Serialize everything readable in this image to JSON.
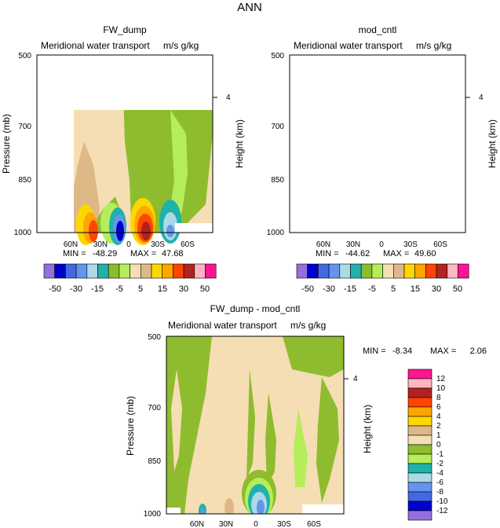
{
  "title": "ANN",
  "chart_data": [
    {
      "type": "heatmap",
      "title": "FW_dump",
      "subtitle": "Meridional water transport",
      "units": "m/s g/kg",
      "ylabel": "Pressure (mb)",
      "ylabel_right": "Height (km)",
      "yticks": [
        "500",
        "700",
        "850",
        "1000"
      ],
      "yticks_right": [
        "4"
      ],
      "xticks": [
        "60N",
        "30N",
        "0",
        "30S",
        "60S"
      ],
      "ylim": [
        1000,
        500
      ],
      "stats": {
        "min_label": "MIN =",
        "min": "-48.29",
        "max_label": "MAX =",
        "max": "47.68"
      }
    },
    {
      "type": "heatmap",
      "title": "mod_cntl",
      "subtitle": "Meridional water transport",
      "units": "m/s g/kg",
      "ylabel": "Pressure (mb)",
      "ylabel_right": "Height (km)",
      "yticks": [
        "500",
        "700",
        "850",
        "1000"
      ],
      "yticks_right": [
        "4"
      ],
      "xticks": [
        "60N",
        "30N",
        "0",
        "30S",
        "60S"
      ],
      "ylim": [
        1000,
        500
      ],
      "stats": {
        "min_label": "MIN =",
        "min": "-44.62",
        "max_label": "MAX =",
        "max": "49.60"
      }
    },
    {
      "type": "heatmap",
      "title": "FW_dump - mod_cntl",
      "subtitle": "Meridional water transport",
      "units": "m/s g/kg",
      "ylabel": "Pressure (mb)",
      "ylabel_right": "Height (km)",
      "yticks": [
        "500",
        "700",
        "850",
        "1000"
      ],
      "yticks_right": [
        "4"
      ],
      "xticks": [
        "60N",
        "30N",
        "0",
        "30S",
        "60S"
      ],
      "ylim": [
        1000,
        500
      ],
      "stats": {
        "min_label": "MIN =",
        "min": "-8.34",
        "max_label": "MAX =",
        "max": "2.06"
      }
    }
  ],
  "colorbar_top": {
    "labels": [
      "-50",
      "-30",
      "-15",
      "-5",
      "5",
      "15",
      "30",
      "50"
    ],
    "colors": [
      "#9370db",
      "#0000cd",
      "#4169e1",
      "#6495ed",
      "#add8e6",
      "#20b2aa",
      "#8fbc2f",
      "#b4ee5a",
      "#f5deb3",
      "#deb887",
      "#ffd700",
      "#ffa500",
      "#ff4500",
      "#b22222",
      "#ffb6c1",
      "#ff1493"
    ]
  },
  "colorbar_diff": {
    "labels": [
      "12",
      "10",
      "8",
      "6",
      "4",
      "2",
      "1",
      "0",
      "-1",
      "-2",
      "-4",
      "-6",
      "-8",
      "-10",
      "-12"
    ],
    "colors": [
      "#ff1493",
      "#ffb6c1",
      "#b22222",
      "#ff4500",
      "#ffa500",
      "#ffd700",
      "#deb887",
      "#f5deb3",
      "#8fbc2f",
      "#b4ee5a",
      "#20b2aa",
      "#add8e6",
      "#6495ed",
      "#4169e1",
      "#0000cd",
      "#9370db"
    ]
  }
}
